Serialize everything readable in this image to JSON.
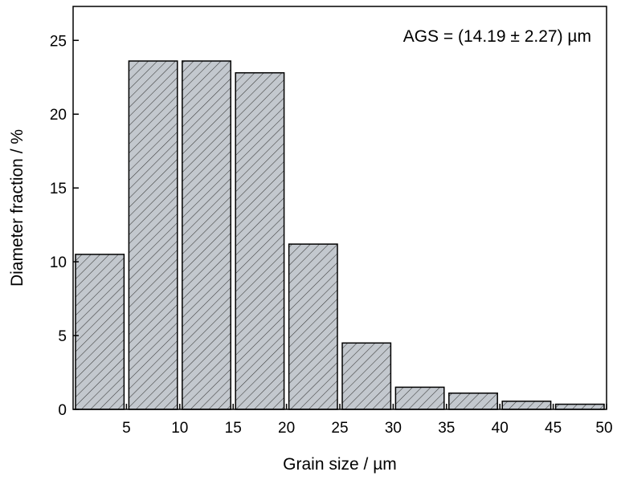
{
  "chart_data": {
    "type": "bar",
    "xlabel": "Grain size / µm",
    "ylabel": "Diameter fraction / %",
    "annotation": "AGS = (14.19 ± 2.27) µm",
    "xlim": [
      0,
      50
    ],
    "ylim": [
      0,
      27.3
    ],
    "x_ticks": [
      5,
      10,
      15,
      20,
      25,
      30,
      35,
      40,
      45,
      50
    ],
    "y_ticks": [
      0,
      5,
      10,
      15,
      20,
      25
    ],
    "bins": [
      {
        "x0": 0,
        "x1": 5,
        "value": 10.5
      },
      {
        "x0": 5,
        "x1": 10,
        "value": 23.6
      },
      {
        "x0": 10,
        "x1": 15,
        "value": 23.6
      },
      {
        "x0": 15,
        "x1": 20,
        "value": 22.8
      },
      {
        "x0": 20,
        "x1": 25,
        "value": 11.2
      },
      {
        "x0": 25,
        "x1": 30,
        "value": 4.5
      },
      {
        "x0": 30,
        "x1": 35,
        "value": 1.5
      },
      {
        "x0": 35,
        "x1": 40,
        "value": 1.1
      },
      {
        "x0": 40,
        "x1": 45,
        "value": 0.55
      },
      {
        "x0": 45,
        "x1": 50,
        "value": 0.35
      }
    ],
    "bar_color": "#c3c8ce",
    "hatch_color": "#3a3a3a",
    "grid": false,
    "legend": "none"
  }
}
